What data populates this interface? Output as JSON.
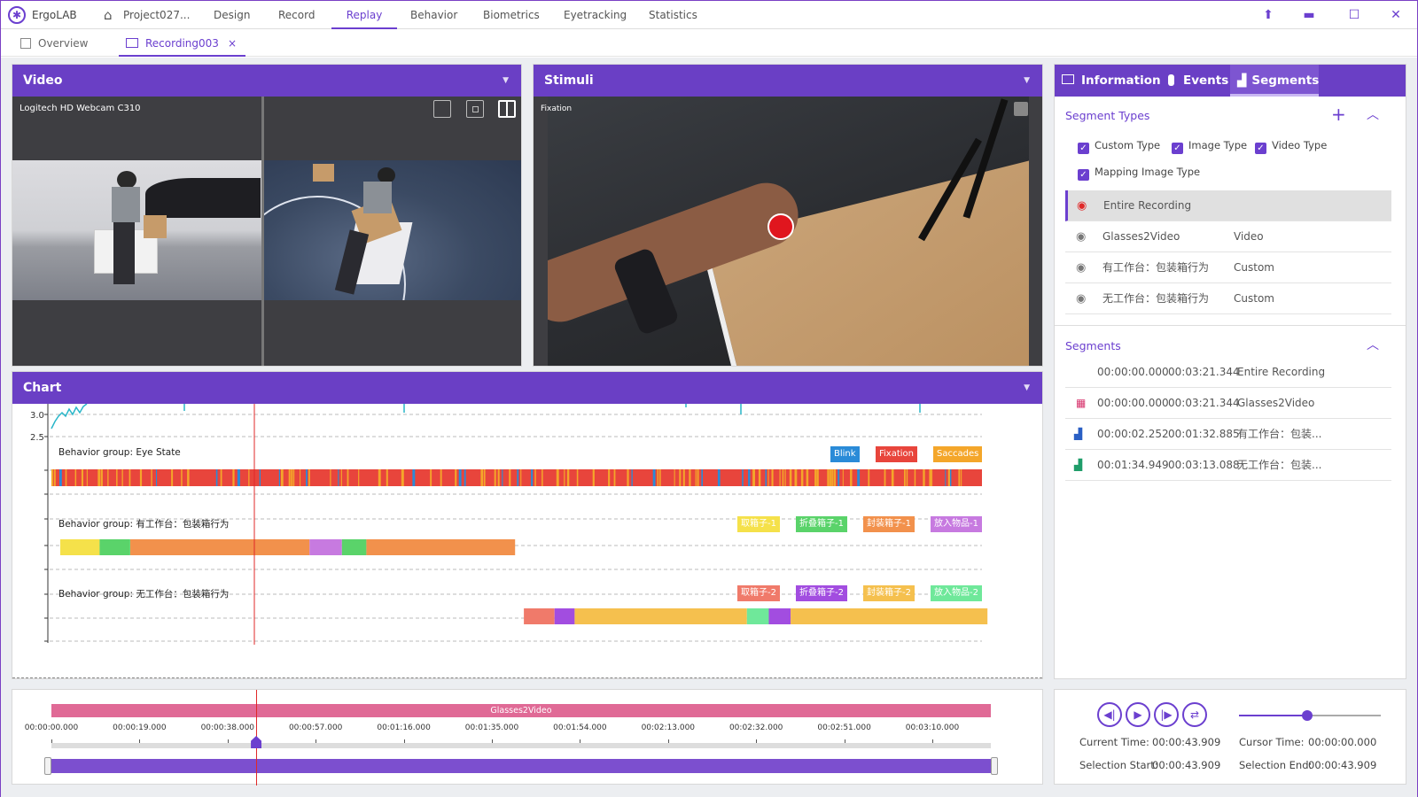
{
  "app": {
    "name": "ErgoLAB",
    "project": "Project027..."
  },
  "menu": [
    {
      "label": "Design"
    },
    {
      "label": "Record"
    },
    {
      "label": "Replay",
      "active": true
    },
    {
      "label": "Behavior"
    },
    {
      "label": "Biometrics"
    },
    {
      "label": "Eyetracking"
    },
    {
      "label": "Statistics"
    }
  ],
  "tabs": {
    "overview": "Overview",
    "recording": "Recording003",
    "close": "×"
  },
  "video": {
    "title": "Video",
    "camera": "Logitech HD Webcam C310"
  },
  "stimuli": {
    "title": "Stimuli",
    "overlay_label": "Fixation"
  },
  "right_tabs": {
    "information": "Information",
    "events": "Events",
    "segments": "Segments"
  },
  "segment_types": {
    "title": "Segment Types",
    "types": [
      "Custom Type",
      "Image Type",
      "Video Type",
      "Mapping Image Type"
    ],
    "rows": [
      {
        "name": "Entire Recording",
        "type": ""
      },
      {
        "name": "Glasses2Video",
        "type": "Video"
      },
      {
        "name": "有工作台：包装箱行为",
        "type": "Custom"
      },
      {
        "name": "无工作台：包装箱行为",
        "type": "Custom"
      }
    ]
  },
  "segments": {
    "title": "Segments",
    "rows": [
      {
        "start": "00:00:00.000",
        "end": "00:03:21.344",
        "name": "Entire Recording"
      },
      {
        "start": "00:00:00.000",
        "end": "00:03:21.344",
        "name": "Glasses2Video"
      },
      {
        "start": "00:00:02.252",
        "end": "00:01:32.885",
        "name": "有工作台：包装..."
      },
      {
        "start": "00:01:34.949",
        "end": "00:03:13.088",
        "name": "无工作台：包装..."
      }
    ]
  },
  "chart": {
    "title": "Chart",
    "y_ticks": [
      "3.0",
      "2.5"
    ],
    "groups": [
      {
        "label": "Behavior group: Eye State",
        "legend": [
          {
            "label": "Blink",
            "color": "#2a8bd8"
          },
          {
            "label": "Fixation",
            "color": "#e8453c"
          },
          {
            "label": "Saccades",
            "color": "#f4a62a"
          }
        ]
      },
      {
        "label": "Behavior group: 有工作台：包装箱行为",
        "legend": [
          {
            "label": "取箱子-1",
            "color": "#f5e14a"
          },
          {
            "label": "折叠箱子-1",
            "color": "#5ad36a"
          },
          {
            "label": "封装箱子-1",
            "color": "#f2914c"
          },
          {
            "label": "放入物品-1",
            "color": "#c77ae0"
          }
        ],
        "segments": [
          {
            "start": 0.0,
            "end": 0.045,
            "color": "#f5e14a"
          },
          {
            "start": 0.045,
            "end": 0.08,
            "color": "#5ad36a"
          },
          {
            "start": 0.08,
            "end": 0.285,
            "color": "#f2914c"
          },
          {
            "start": 0.285,
            "end": 0.322,
            "color": "#c77ae0"
          },
          {
            "start": 0.322,
            "end": 0.35,
            "color": "#5ad36a"
          },
          {
            "start": 0.35,
            "end": 0.52,
            "color": "#f2914c"
          }
        ]
      },
      {
        "label": "Behavior group: 无工作台：包装箱行为",
        "legend": [
          {
            "label": "取箱子-2",
            "color": "#f07a6a"
          },
          {
            "label": "折叠箱子-2",
            "color": "#a24de0"
          },
          {
            "label": "封装箱子-2",
            "color": "#f5c04e"
          },
          {
            "label": "放入物品-2",
            "color": "#6fe89a"
          }
        ],
        "segments": [
          {
            "start": 0.53,
            "end": 0.565,
            "color": "#f07a6a"
          },
          {
            "start": 0.565,
            "end": 0.588,
            "color": "#a24de0"
          },
          {
            "start": 0.588,
            "end": 0.785,
            "color": "#f5c04e"
          },
          {
            "start": 0.785,
            "end": 0.81,
            "color": "#6fe89a"
          },
          {
            "start": 0.81,
            "end": 0.835,
            "color": "#a24de0"
          },
          {
            "start": 0.835,
            "end": 1.06,
            "color": "#f5c04e"
          }
        ]
      }
    ]
  },
  "timeline": {
    "segment_label": "Glasses2Video",
    "ticks": [
      "00:00:00.000",
      "00:00:19.000",
      "00:00:38.000",
      "00:00:57.000",
      "00:01:16.000",
      "00:01:35.000",
      "00:01:54.000",
      "00:02:13.000",
      "00:02:32.000",
      "00:02:51.000",
      "00:03:10.000"
    ],
    "playhead": 0.218
  },
  "player": {
    "current_time_label": "Current Time:",
    "current_time": "00:00:43.909",
    "cursor_time_label": "Cursor Time:",
    "cursor_time": "00:00:00.000",
    "selection_start_label": "Selection Start:",
    "selection_start": "00:00:43.909",
    "selection_end_label": "Selection End:",
    "selection_end": "00:00:43.909",
    "volume": 0.48
  },
  "colors": {
    "accent": "#6a3fc5",
    "segment_bar": "#e06a96"
  }
}
